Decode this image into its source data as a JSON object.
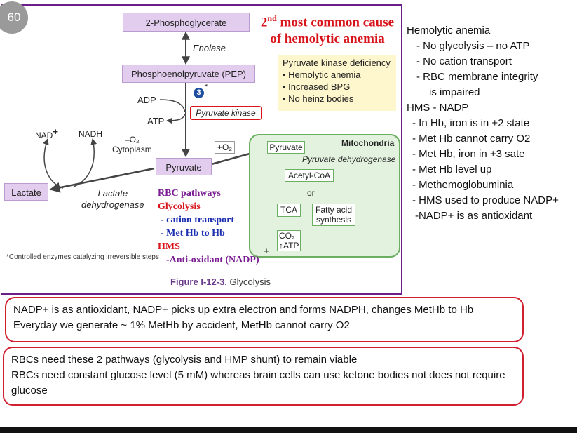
{
  "slide_number": "60",
  "figure": {
    "metabolites": {
      "pg2": "2-Phosphoglycerate",
      "pep": "Phosphoenolpyruvate (PEP)",
      "pyruvate": "Pyruvate",
      "lactate": "Lactate"
    },
    "enolase": "Enolase",
    "adp": "ADP",
    "atp": "ATP",
    "step_number": "3",
    "step_star": "*",
    "pyruvate_kinase": "Pyruvate kinase",
    "nad": "NAD",
    "nad_plus": "+",
    "nadh": "NADH",
    "minus_o2": "–O₂",
    "cytoplasm": "Cytoplasm",
    "plus_o2": "+O₂",
    "ldh_line1": "Lactate",
    "ldh_line2": "dehydrogenase",
    "heading_line1": "2nd most common cause",
    "heading_line2": "of hemolytic anemia",
    "pkd_box": {
      "title": "Pyruvate kinase deficiency",
      "items": [
        "• Hemolytic anemia",
        "• Increased BPG",
        "• No heinz bodies"
      ]
    },
    "mitochondria": {
      "title": "Mitochondria",
      "pyruvate": "Pyruvate",
      "pdh": "Pyruvate dehydrogenase",
      "acetyl_coa": "Acetyl-CoA",
      "or": "or",
      "tca": "TCA",
      "fatty_acid_line1": "Fatty acid",
      "fatty_acid_line2": "synthesis",
      "co2": "CO₂",
      "atp": "↑ATP"
    },
    "rbc_pathways": {
      "title": "RBC pathways",
      "glycolysis": "Glycolysis",
      "cation_transport": "- cation transport",
      "methb": "- Met Hb to Hb",
      "hms": "HMS",
      "antioxidant": "-Anti-oxidant (NADP)",
      "plus": "+"
    },
    "footnote": "*Controlled enzymes catalyzing irreversible steps",
    "caption_label": "Figure I-12-3.",
    "caption_text": " Glycolysis"
  },
  "notes": [
    "Hemolytic anemia",
    "  - No glycolysis – no ATP",
    "  - No cation transport",
    "  - RBC membrane integrity",
    "     is impaired",
    "HMS - NADP",
    " - In Hb, iron is in +2 state",
    " - Met Hb cannot carry O2",
    " - Met Hb, iron in +3 sate",
    " - Met Hb level up",
    " - Methemoglobuminia",
    " - HMS used to produce NADP+",
    " -NADP+ is as antioxidant"
  ],
  "callout1": {
    "line1": "NADP+ is as antioxidant, NADP+ picks up extra electron and forms NADPH, changes MetHb to Hb",
    "line2": "Everyday we generate ~ 1% MetHb by accident, MetHb cannot carry O2"
  },
  "callout2": {
    "line1": "RBCs need these 2 pathways (glycolysis and HMP shunt) to remain viable",
    "line2": "RBCs need constant glucose level (5 mM) whereas brain cells can use ketone bodies not does not require glucose"
  },
  "colors": {
    "frame": "#6a1e8a",
    "metabolite_box": "#e3cdee",
    "mitochondria": "#e3f2df",
    "highlight_red": "#d8141a",
    "callout_border": "#d02030"
  }
}
